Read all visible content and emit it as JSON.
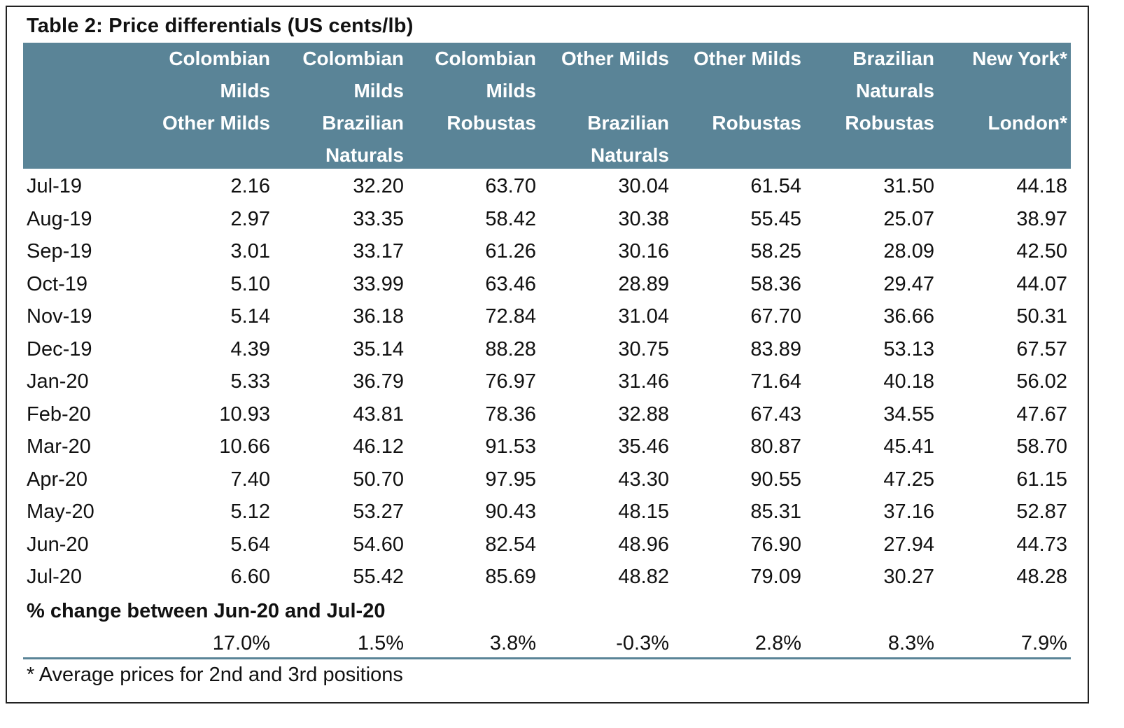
{
  "title": "Table 2: Price differentials (US cents/lb)",
  "columns": [
    {
      "lines": [
        "Colombian",
        "Milds",
        "Other Milds"
      ]
    },
    {
      "lines": [
        "Colombian",
        "Milds",
        "Brazilian",
        "Naturals"
      ]
    },
    {
      "lines": [
        "Colombian",
        "Milds",
        "Robustas"
      ]
    },
    {
      "lines": [
        "Other Milds",
        "",
        "Brazilian",
        "Naturals"
      ]
    },
    {
      "lines": [
        "Other Milds",
        "",
        "Robustas"
      ]
    },
    {
      "lines": [
        "Brazilian",
        "Naturals",
        "Robustas"
      ]
    },
    {
      "lines": [
        "New York*",
        "",
        "London*"
      ]
    }
  ],
  "rows": [
    {
      "month": "Jul-19",
      "values": [
        "2.16",
        "32.20",
        "63.70",
        "30.04",
        "61.54",
        "31.50",
        "44.18"
      ]
    },
    {
      "month": "Aug-19",
      "values": [
        "2.97",
        "33.35",
        "58.42",
        "30.38",
        "55.45",
        "25.07",
        "38.97"
      ]
    },
    {
      "month": "Sep-19",
      "values": [
        "3.01",
        "33.17",
        "61.26",
        "30.16",
        "58.25",
        "28.09",
        "42.50"
      ]
    },
    {
      "month": "Oct-19",
      "values": [
        "5.10",
        "33.99",
        "63.46",
        "28.89",
        "58.36",
        "29.47",
        "44.07"
      ]
    },
    {
      "month": "Nov-19",
      "values": [
        "5.14",
        "36.18",
        "72.84",
        "31.04",
        "67.70",
        "36.66",
        "50.31"
      ]
    },
    {
      "month": "Dec-19",
      "values": [
        "4.39",
        "35.14",
        "88.28",
        "30.75",
        "83.89",
        "53.13",
        "67.57"
      ]
    },
    {
      "month": "Jan-20",
      "values": [
        "5.33",
        "36.79",
        "76.97",
        "31.46",
        "71.64",
        "40.18",
        "56.02"
      ]
    },
    {
      "month": "Feb-20",
      "values": [
        "10.93",
        "43.81",
        "78.36",
        "32.88",
        "67.43",
        "34.55",
        "47.67"
      ]
    },
    {
      "month": "Mar-20",
      "values": [
        "10.66",
        "46.12",
        "91.53",
        "35.46",
        "80.87",
        "45.41",
        "58.70"
      ]
    },
    {
      "month": "Apr-20",
      "values": [
        "7.40",
        "50.70",
        "97.95",
        "43.30",
        "90.55",
        "47.25",
        "61.15"
      ]
    },
    {
      "month": "May-20",
      "values": [
        "5.12",
        "53.27",
        "90.43",
        "48.15",
        "85.31",
        "37.16",
        "52.87"
      ]
    },
    {
      "month": "Jun-20",
      "values": [
        "5.64",
        "54.60",
        "82.54",
        "48.96",
        "76.90",
        "27.94",
        "44.73"
      ]
    },
    {
      "month": "Jul-20",
      "values": [
        "6.60",
        "55.42",
        "85.69",
        "48.82",
        "79.09",
        "30.27",
        "48.28"
      ]
    }
  ],
  "change_label": "% change between Jun-20 and Jul-20",
  "change_values": [
    "17.0%",
    "1.5%",
    "3.8%",
    "-0.3%",
    "2.8%",
    "8.3%",
    "7.9%"
  ],
  "footnote": "* Average prices for 2nd and 3rd positions",
  "colors": {
    "header_bg": "#5a8497",
    "header_text": "#ffffff",
    "rule": "#5a8497"
  }
}
